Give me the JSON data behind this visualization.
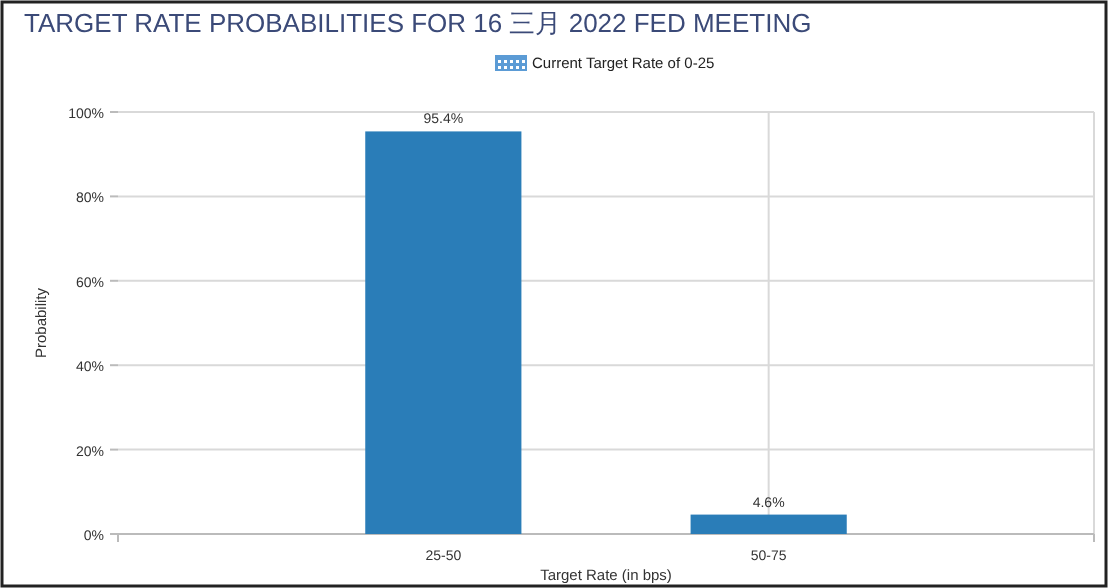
{
  "chart_data": {
    "type": "bar",
    "title": "TARGET RATE PROBABILITIES FOR 16 三月 2022 FED MEETING",
    "xlabel": "Target Rate (in bps)",
    "ylabel": "Probability",
    "categories": [
      "25-50",
      "50-75"
    ],
    "series": [
      {
        "name": "Current Target Rate of 0-25",
        "color": "#5b9bd5",
        "values": [
          null,
          null
        ]
      },
      {
        "color": "#2a7db8",
        "values": [
          95.4,
          4.6
        ],
        "value_labels": [
          "95.4%",
          "4.6%"
        ]
      }
    ],
    "ylim": [
      0,
      100
    ],
    "yticks": [
      {
        "value": 0,
        "label": "0%"
      },
      {
        "value": 20,
        "label": "20%"
      },
      {
        "value": 40,
        "label": "40%"
      },
      {
        "value": 60,
        "label": "60%"
      },
      {
        "value": 80,
        "label": "80%"
      },
      {
        "value": 100,
        "label": "100%"
      }
    ],
    "grid": true,
    "legend": "top"
  }
}
